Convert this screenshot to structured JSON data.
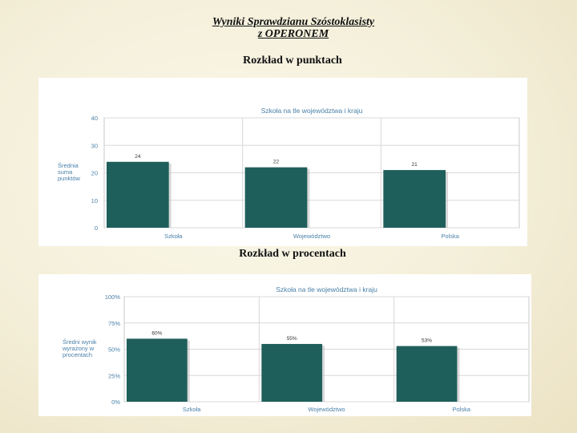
{
  "header": {
    "title_line1": "Wyniki Sprawdzianu Szóstoklasisty",
    "title_line2": "z OPERONEM"
  },
  "sections": [
    {
      "heading": "Rozkład w punktach"
    },
    {
      "heading": "Rozkład w procentach"
    }
  ],
  "colors": {
    "bar": "#1f5f5b",
    "chart_title": "#4a80a8",
    "axis_text": "#4a80a8",
    "grid": "#d8d8d8"
  },
  "chart_data": [
    {
      "type": "bar",
      "title": "Szkoła na tle województwa i kraju",
      "ylabel": [
        "Średnia",
        "suma",
        "punktów"
      ],
      "categories": [
        "Szkoła",
        "Województwo",
        "Polska"
      ],
      "values": [
        24,
        22,
        21
      ],
      "data_labels": [
        "24",
        "22",
        "21"
      ],
      "ylim": [
        0,
        40
      ],
      "yticks": [
        0,
        10,
        20,
        30,
        40
      ],
      "ytick_labels": [
        "0",
        "10",
        "20",
        "30",
        "40"
      ],
      "grid": true
    },
    {
      "type": "bar",
      "title": "Szkoła na tle województwa i kraju",
      "ylabel": [
        "Średni wynik",
        "wyrażony w",
        "procentach"
      ],
      "categories": [
        "Szkoła",
        "Województwo",
        "Polska"
      ],
      "values": [
        60,
        55,
        53
      ],
      "data_labels": [
        "60%",
        "55%",
        "53%"
      ],
      "ylim": [
        0,
        100
      ],
      "yticks": [
        0,
        25,
        50,
        75,
        100
      ],
      "ytick_labels": [
        "0%",
        "25%",
        "50%",
        "75%",
        "100%"
      ],
      "grid": true
    }
  ]
}
